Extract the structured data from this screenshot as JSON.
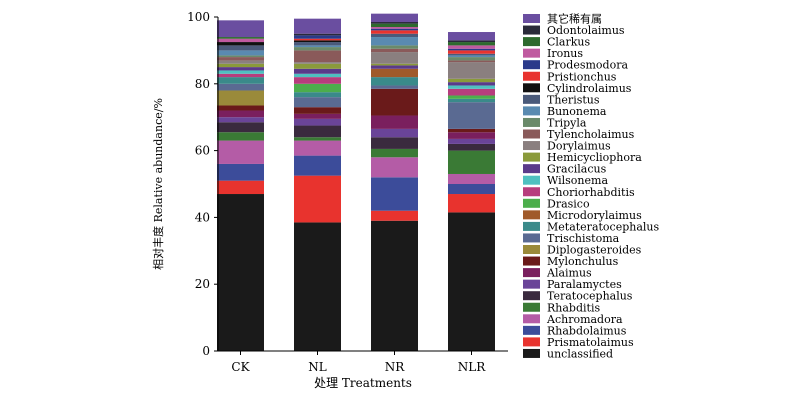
{
  "chart_data": {
    "type": "bar",
    "stacked": true,
    "title": "",
    "xlabel": "处理 Treatments",
    "ylabel": "相对丰度 Relative abundance/%",
    "ylim": [
      0,
      100
    ],
    "yticks": [
      0,
      20,
      40,
      60,
      80,
      100
    ],
    "categories": [
      "CK",
      "NL",
      "NR",
      "NLR"
    ],
    "legend_position": "right",
    "series": [
      {
        "name": "unclassified",
        "color": "#1a1a1a",
        "values": [
          47,
          38.5,
          39,
          41.5
        ]
      },
      {
        "name": "Prismatolaimus",
        "color": "#e8332e",
        "values": [
          4,
          14,
          3,
          5.5
        ]
      },
      {
        "name": "Rhabdolaimus",
        "color": "#3c4c9a",
        "values": [
          5,
          6,
          10,
          3
        ]
      },
      {
        "name": "Achromadora",
        "color": "#b45ca6",
        "values": [
          7,
          4.5,
          6,
          3
        ]
      },
      {
        "name": "Rhabditis",
        "color": "#3a7a35",
        "values": [
          2.5,
          1,
          2.5,
          7
        ]
      },
      {
        "name": "Teratocephalus",
        "color": "#3a2a3e",
        "values": [
          3,
          3.5,
          3.5,
          2
        ]
      },
      {
        "name": "Paralamyctes",
        "color": "#6a4498",
        "values": [
          1.5,
          2,
          2.5,
          1.5
        ]
      },
      {
        "name": "Alaimus",
        "color": "#7a1f5e",
        "values": [
          2,
          1.5,
          4,
          2
        ]
      },
      {
        "name": "Mylonchulus",
        "color": "#6a1a1a",
        "values": [
          1.5,
          2,
          8,
          1
        ]
      },
      {
        "name": "Diplogasteroides",
        "color": "#9a8a3a",
        "values": [
          4.5,
          0,
          0,
          0
        ]
      },
      {
        "name": "Trischistoma",
        "color": "#5a6a92",
        "values": [
          2,
          3,
          1,
          8
        ]
      },
      {
        "name": "Metateratocephalus",
        "color": "#3a8a8a",
        "values": [
          2,
          1.5,
          2.5,
          1
        ]
      },
      {
        "name": "Microdorylaimus",
        "color": "#a05a2a",
        "values": [
          0,
          0,
          2.5,
          0
        ]
      },
      {
        "name": "Drasico",
        "color": "#4cae4c",
        "values": [
          0,
          2.5,
          0,
          1
        ]
      },
      {
        "name": "Choriorhabditis",
        "color": "#b73d7d",
        "values": [
          1,
          2,
          0,
          2
        ]
      },
      {
        "name": "Wilsonema",
        "color": "#4fc0c0",
        "values": [
          1,
          1,
          0,
          1
        ]
      },
      {
        "name": "Gracilacus",
        "color": "#5a3a8a",
        "values": [
          1,
          1.5,
          1,
          1
        ]
      },
      {
        "name": "Hemicycliophora",
        "color": "#8a9a3a",
        "values": [
          1,
          1.5,
          0.5,
          1
        ]
      },
      {
        "name": "Dorylaimus",
        "color": "#8a7f7f",
        "values": [
          1,
          0.5,
          3.5,
          5
        ]
      },
      {
        "name": "Tylencholaimus",
        "color": "#8a5a5a",
        "values": [
          1,
          3.5,
          1,
          0.5
        ]
      },
      {
        "name": "Tripyla",
        "color": "#6a8a6a",
        "values": [
          0.5,
          1,
          1,
          1
        ]
      },
      {
        "name": "Bunonema",
        "color": "#5a8ab0",
        "values": [
          1.5,
          0.5,
          2.5,
          0.5
        ]
      },
      {
        "name": "Theristus",
        "color": "#4a5a7a",
        "values": [
          1.5,
          1,
          1,
          0.5
        ]
      },
      {
        "name": "Cylindrolaimus",
        "color": "#111111",
        "values": [
          1,
          0.5,
          0,
          0
        ]
      },
      {
        "name": "Pristionchus",
        "color": "#e8332e",
        "values": [
          0,
          0.5,
          1,
          1
        ]
      },
      {
        "name": "Prodesmodora",
        "color": "#2a3a8a",
        "values": [
          0,
          1,
          0.5,
          0.5
        ]
      },
      {
        "name": "Ironus",
        "color": "#c05aa0",
        "values": [
          1,
          0,
          0.5,
          1
        ]
      },
      {
        "name": "Clarkus",
        "color": "#2e6a2e",
        "values": [
          0.5,
          0,
          1,
          1
        ]
      },
      {
        "name": "Odontolaimus",
        "color": "#2a2a3a",
        "values": [
          0,
          0.5,
          0.5,
          0.5
        ]
      },
      {
        "name": "其它稀有属",
        "color": "#6a4ea0",
        "values": [
          5,
          4.5,
          2.5,
          2.5
        ]
      }
    ]
  }
}
